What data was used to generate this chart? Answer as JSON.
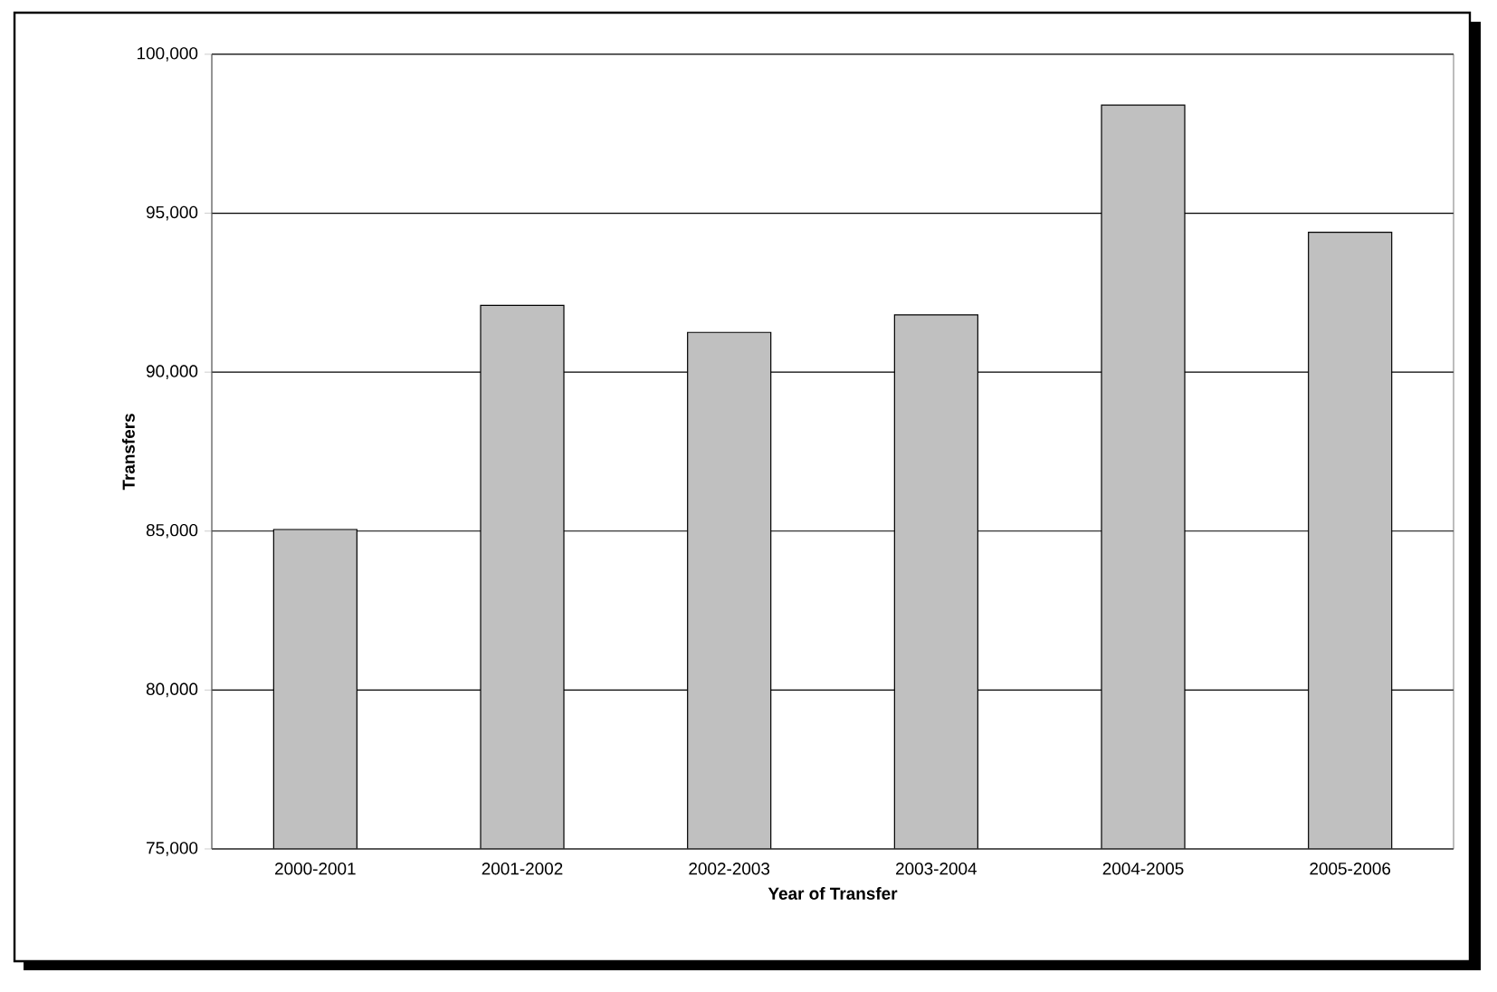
{
  "chart_data": {
    "type": "bar",
    "xlabel": "Year of Transfer",
    "ylabel": "Transfers",
    "categories": [
      "2000-2001",
      "2001-2002",
      "2002-2003",
      "2003-2004",
      "2004-2005",
      "2005-2006"
    ],
    "values": [
      85050,
      92100,
      91250,
      91800,
      98400,
      94400
    ],
    "color": "#c0c0c0",
    "ylim": [
      75000,
      100000
    ],
    "yticks": [
      {
        "value": 75000,
        "label": "75,000"
      },
      {
        "value": 80000,
        "label": "80,000"
      },
      {
        "value": 85000,
        "label": "85,000"
      },
      {
        "value": 90000,
        "label": "90,000"
      },
      {
        "value": 95000,
        "label": "95,000"
      },
      {
        "value": 100000,
        "label": "100,000"
      }
    ],
    "grid": "y"
  }
}
